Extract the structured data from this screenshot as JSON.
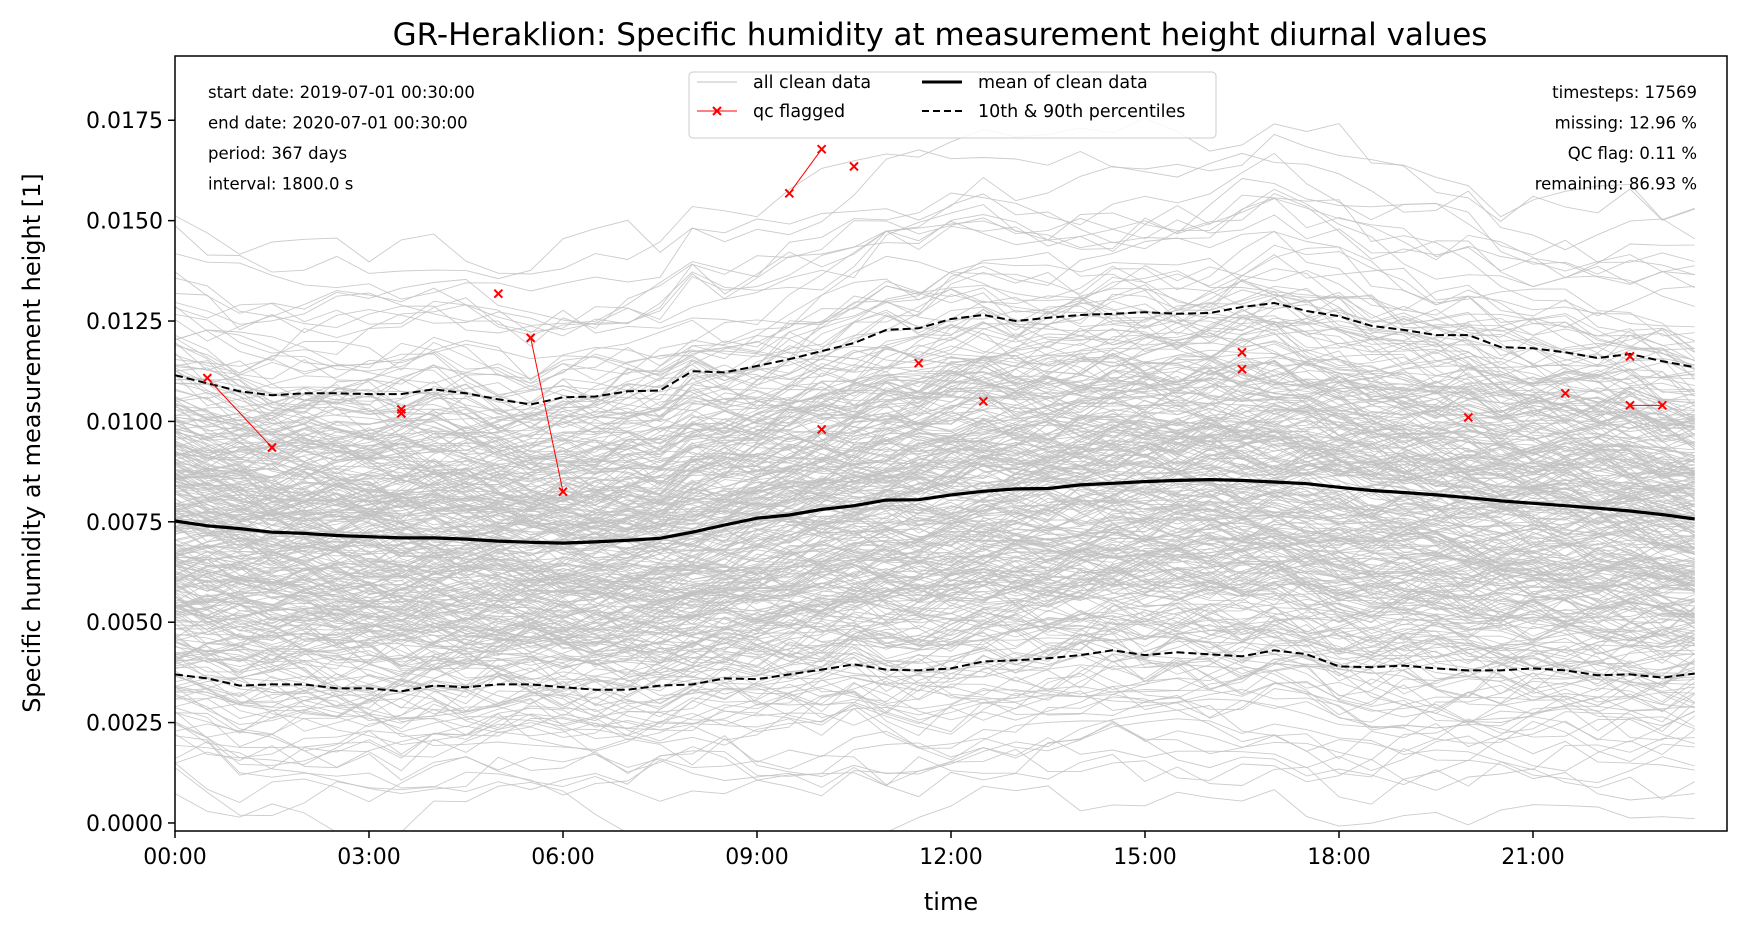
{
  "chart_data": {
    "type": "line",
    "title": "GR-Heraklion: Specific humidity at measurement height diurnal values",
    "xlabel": "time",
    "ylabel": "Specific humidity at measurement height [1]",
    "xlim": [
      0,
      24
    ],
    "ylim": [
      -0.0002,
      0.0191
    ],
    "x_ticks": [
      {
        "value": 0,
        "label": "00:00"
      },
      {
        "value": 3,
        "label": "03:00"
      },
      {
        "value": 6,
        "label": "06:00"
      },
      {
        "value": 9,
        "label": "09:00"
      },
      {
        "value": 12,
        "label": "12:00"
      },
      {
        "value": 15,
        "label": "15:00"
      },
      {
        "value": 18,
        "label": "18:00"
      },
      {
        "value": 21,
        "label": "21:00"
      }
    ],
    "y_ticks": [
      {
        "value": 0.0,
        "label": "0.0000"
      },
      {
        "value": 0.0025,
        "label": "0.0025"
      },
      {
        "value": 0.005,
        "label": "0.0050"
      },
      {
        "value": 0.0075,
        "label": "0.0075"
      },
      {
        "value": 0.01,
        "label": "0.0100"
      },
      {
        "value": 0.0125,
        "label": "0.0125"
      },
      {
        "value": 0.015,
        "label": "0.0150"
      },
      {
        "value": 0.0175,
        "label": "0.0175"
      }
    ],
    "grid": false,
    "legend_position": "top-center",
    "legend": [
      {
        "label": "all clean data",
        "style": "thin-gray-line"
      },
      {
        "label": "qc flagged",
        "style": "red-x-marker-line"
      },
      {
        "label": "mean of clean data",
        "style": "thick-black-line"
      },
      {
        "label": "10th & 90th percentiles",
        "style": "dashed-black-line"
      }
    ],
    "annotations_left": [
      "start date: 2019-07-01 00:30:00",
      "end date: 2020-07-01 00:30:00",
      "period: 367 days",
      "interval: 1800.0 s"
    ],
    "annotations_right": [
      "timesteps: 17569",
      "missing: 12.96 %",
      "QC flag: 0.11 %",
      "remaining: 86.93 %"
    ],
    "colors": {
      "clean": "#c2c2c2",
      "flagged": "#ff0000",
      "mean": "#000000",
      "percentile": "#000000"
    },
    "background_daily_lines": {
      "count": 367,
      "description_level": "each day one thin gray line across 00:00-23:30 spread between percentiles"
    },
    "series": [
      {
        "name": "mean of clean data",
        "x": [
          0,
          0.5,
          1,
          1.5,
          2,
          2.5,
          3,
          3.5,
          4,
          4.5,
          5,
          5.5,
          6,
          6.5,
          7,
          7.5,
          8,
          8.5,
          9,
          9.5,
          10,
          10.5,
          11,
          11.5,
          12,
          12.5,
          13,
          13.5,
          14,
          14.5,
          15,
          15.5,
          16,
          16.5,
          17,
          17.5,
          18,
          18.5,
          19,
          19.5,
          20,
          20.5,
          21,
          21.5,
          22,
          22.5,
          23,
          23.5
        ],
        "y": [
          0.00752,
          0.0074,
          0.00733,
          0.00724,
          0.00721,
          0.00716,
          0.00713,
          0.0071,
          0.0071,
          0.00707,
          0.00702,
          0.00699,
          0.00697,
          0.007,
          0.00704,
          0.00709,
          0.00724,
          0.00742,
          0.00759,
          0.00767,
          0.00781,
          0.0079,
          0.00804,
          0.00805,
          0.00817,
          0.00826,
          0.00832,
          0.00833,
          0.00842,
          0.00846,
          0.0085,
          0.00853,
          0.00855,
          0.00853,
          0.00849,
          0.00845,
          0.00836,
          0.00828,
          0.00823,
          0.00817,
          0.0081,
          0.00802,
          0.00796,
          0.0079,
          0.00784,
          0.00777,
          0.00768,
          0.00757
        ]
      },
      {
        "name": "90th percentile",
        "x": [
          0,
          0.5,
          1,
          1.5,
          2,
          2.5,
          3,
          3.5,
          4,
          4.5,
          5,
          5.5,
          6,
          6.5,
          7,
          7.5,
          8,
          8.5,
          9,
          9.5,
          10,
          10.5,
          11,
          11.5,
          12,
          12.5,
          13,
          13.5,
          14,
          14.5,
          15,
          15.5,
          16,
          16.5,
          17,
          17.5,
          18,
          18.5,
          19,
          19.5,
          20,
          20.5,
          21,
          21.5,
          22,
          22.5,
          23,
          23.5
        ],
        "y": [
          0.01115,
          0.01095,
          0.01075,
          0.01065,
          0.0107,
          0.0107,
          0.01068,
          0.01068,
          0.0108,
          0.0107,
          0.01055,
          0.01042,
          0.0106,
          0.01062,
          0.01075,
          0.01077,
          0.01125,
          0.01122,
          0.01138,
          0.01155,
          0.01175,
          0.01195,
          0.01228,
          0.01232,
          0.01255,
          0.01265,
          0.0125,
          0.01258,
          0.01265,
          0.01268,
          0.01272,
          0.01268,
          0.0127,
          0.01285,
          0.01295,
          0.01275,
          0.01262,
          0.01238,
          0.01228,
          0.01215,
          0.01215,
          0.01185,
          0.01182,
          0.01172,
          0.01158,
          0.01168,
          0.0115,
          0.01135
        ]
      },
      {
        "name": "10th percentile",
        "x": [
          0,
          0.5,
          1,
          1.5,
          2,
          2.5,
          3,
          3.5,
          4,
          4.5,
          5,
          5.5,
          6,
          6.5,
          7,
          7.5,
          8,
          8.5,
          9,
          9.5,
          10,
          10.5,
          11,
          11.5,
          12,
          12.5,
          13,
          13.5,
          14,
          14.5,
          15,
          15.5,
          16,
          16.5,
          17,
          17.5,
          18,
          18.5,
          19,
          19.5,
          20,
          20.5,
          21,
          21.5,
          22,
          22.5,
          23,
          23.5
        ],
        "y": [
          0.0037,
          0.0036,
          0.00342,
          0.00345,
          0.00345,
          0.00335,
          0.00335,
          0.00328,
          0.00342,
          0.00338,
          0.00345,
          0.00345,
          0.00338,
          0.00332,
          0.00332,
          0.00342,
          0.00345,
          0.0036,
          0.00358,
          0.0037,
          0.00382,
          0.00395,
          0.00382,
          0.0038,
          0.00385,
          0.00402,
          0.00405,
          0.0041,
          0.00418,
          0.0043,
          0.00418,
          0.00425,
          0.0042,
          0.00415,
          0.0043,
          0.0042,
          0.0039,
          0.00388,
          0.00392,
          0.00385,
          0.0038,
          0.0038,
          0.00385,
          0.0038,
          0.00368,
          0.0037,
          0.00362,
          0.00372
        ]
      }
    ],
    "qc_flagged_points": [
      {
        "x": 0.5,
        "y": 0.01108
      },
      {
        "x": 1.5,
        "y": 0.00935
      },
      {
        "x": 3.5,
        "y": 0.0103
      },
      {
        "x": 3.5,
        "y": 0.0102
      },
      {
        "x": 5.0,
        "y": 0.01318
      },
      {
        "x": 5.5,
        "y": 0.01208
      },
      {
        "x": 6.0,
        "y": 0.00825
      },
      {
        "x": 9.5,
        "y": 0.01568
      },
      {
        "x": 10.0,
        "y": 0.01678
      },
      {
        "x": 10.5,
        "y": 0.01635
      },
      {
        "x": 10.0,
        "y": 0.0098
      },
      {
        "x": 11.5,
        "y": 0.01145
      },
      {
        "x": 12.5,
        "y": 0.0105
      },
      {
        "x": 16.5,
        "y": 0.01172
      },
      {
        "x": 16.5,
        "y": 0.0113
      },
      {
        "x": 20.0,
        "y": 0.0101
      },
      {
        "x": 21.5,
        "y": 0.0107
      },
      {
        "x": 22.5,
        "y": 0.01162
      },
      {
        "x": 22.5,
        "y": 0.0104
      },
      {
        "x": 23.0,
        "y": 0.0104
      }
    ],
    "qc_flagged_segments": [
      [
        0,
        1
      ],
      [
        5,
        6
      ],
      [
        7,
        8
      ],
      [
        18,
        19
      ]
    ]
  }
}
